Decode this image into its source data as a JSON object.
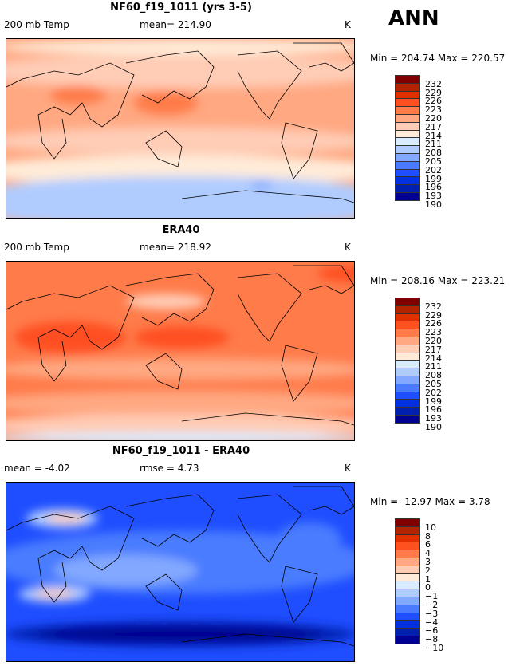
{
  "season": "ANN",
  "chart_data": [
    {
      "type": "heatmap",
      "title": "NF60_f19_1011 (yrs 3-5)",
      "left_label": "200 mb Temp",
      "center_label": "mean= 214.90",
      "units": "K",
      "min_max": "Min = 204.74 Max = 220.57",
      "levels": [
        "232",
        "229",
        "226",
        "223",
        "220",
        "217",
        "214",
        "211",
        "208",
        "205",
        "202",
        "199",
        "196",
        "193",
        "190"
      ]
    },
    {
      "type": "heatmap",
      "title": "ERA40",
      "left_label": "200 mb Temp",
      "center_label": "mean= 218.92",
      "units": "K",
      "min_max": "Min = 208.16 Max = 223.21",
      "levels": [
        "232",
        "229",
        "226",
        "223",
        "220",
        "217",
        "214",
        "211",
        "208",
        "205",
        "202",
        "199",
        "196",
        "193",
        "190"
      ]
    },
    {
      "type": "heatmap",
      "title": "NF60_f19_1011 - ERA40",
      "left_label": "mean =  -4.02",
      "center_label": "rmse =   4.73",
      "units": "K",
      "min_max": "Min = -12.97 Max =   3.78",
      "levels": [
        "10",
        "8",
        "6",
        "4",
        "3",
        "2",
        "1",
        "0",
        "−1",
        "−2",
        "−3",
        "−4",
        "−6",
        "−8",
        "−10"
      ]
    }
  ],
  "colors": [
    "#800000",
    "#B22400",
    "#E03000",
    "#FF5020",
    "#FF7B4A",
    "#FFA882",
    "#FFCCB5",
    "#FFEBD8",
    "#D8EBFF",
    "#B0CCFF",
    "#82A8FF",
    "#4A7BFF",
    "#1E4EFF",
    "#0030E0",
    "#0020B0",
    "#000090"
  ]
}
